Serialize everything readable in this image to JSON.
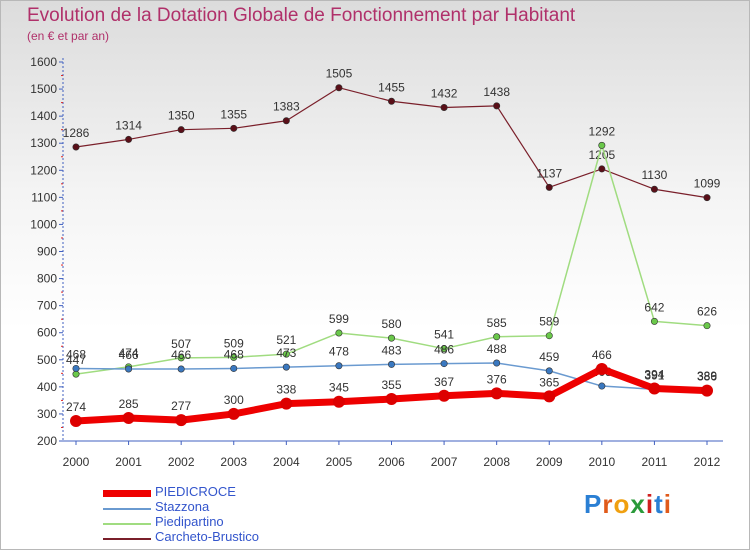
{
  "header": {
    "title": "Evolution de la Dotation Globale de Fonctionnement par Habitant",
    "subtitle": "(en € et par an)"
  },
  "logo": {
    "text": "Proxiti",
    "colors": [
      "#2a7fd4",
      "#e05a1a",
      "#f0a010",
      "#2a9a3a",
      "#d02020",
      "#2a7fd4",
      "#e05a1a"
    ]
  },
  "chart_data": {
    "type": "line",
    "x": [
      "2000",
      "2001",
      "2002",
      "2003",
      "2004",
      "2005",
      "2006",
      "2007",
      "2008",
      "2009",
      "2010",
      "2011",
      "2012"
    ],
    "ylim": [
      200,
      1600
    ],
    "yticks": [
      200,
      300,
      400,
      500,
      600,
      700,
      800,
      900,
      1000,
      1100,
      1200,
      1300,
      1400,
      1500,
      1600
    ],
    "grid": false,
    "legend_position": "bottom-left",
    "series": [
      {
        "name": "Carcheto-Brustico",
        "color": "#7a1f2a",
        "marker": "#5a0f18",
        "width": 1.2,
        "values": [
          1286,
          1314,
          1350,
          1355,
          1383,
          1505,
          1455,
          1432,
          1438,
          1137,
          1205,
          1130,
          1099
        ],
        "labels": [
          "1286",
          "1314",
          "1350",
          "1355",
          "1383",
          "1505",
          "1455",
          "1432",
          "1438",
          "1137",
          "1205",
          "1130",
          "1099"
        ]
      },
      {
        "name": "Piedipartino",
        "color": "#a0dc80",
        "marker": "#6ac84a",
        "width": 1.5,
        "values": [
          447,
          474,
          507,
          509,
          521,
          599,
          580,
          541,
          585,
          589,
          1292,
          642,
          626
        ],
        "labels": [
          "447",
          "474",
          "507",
          "509",
          "521",
          "599",
          "580",
          "541",
          "585",
          "589",
          "1292",
          "642",
          "626"
        ]
      },
      {
        "name": "Stazzona",
        "color": "#6a9ad0",
        "marker": "#3a78c0",
        "width": 1.5,
        "values": [
          468,
          466,
          466,
          468,
          473,
          478,
          483,
          486,
          488,
          459,
          403,
          391,
          389
        ],
        "labels": [
          "468",
          "466",
          "466",
          "468",
          "473",
          "478",
          "483",
          "486",
          "488",
          "459",
          "403",
          "391",
          "389"
        ]
      },
      {
        "name": "PIEDICROCE",
        "color": "#ee0000",
        "marker": "#dd0000",
        "width": 7,
        "values": [
          274,
          285,
          277,
          300,
          338,
          345,
          355,
          367,
          376,
          365,
          466,
          394,
          386
        ],
        "labels": [
          "274",
          "285",
          "277",
          "300",
          "338",
          "345",
          "355",
          "367",
          "376",
          "365",
          "466",
          "394",
          "386"
        ]
      }
    ],
    "legend": [
      "PIEDICROCE",
      "Stazzona",
      "Piedipartino",
      "Carcheto-Brustico"
    ]
  }
}
